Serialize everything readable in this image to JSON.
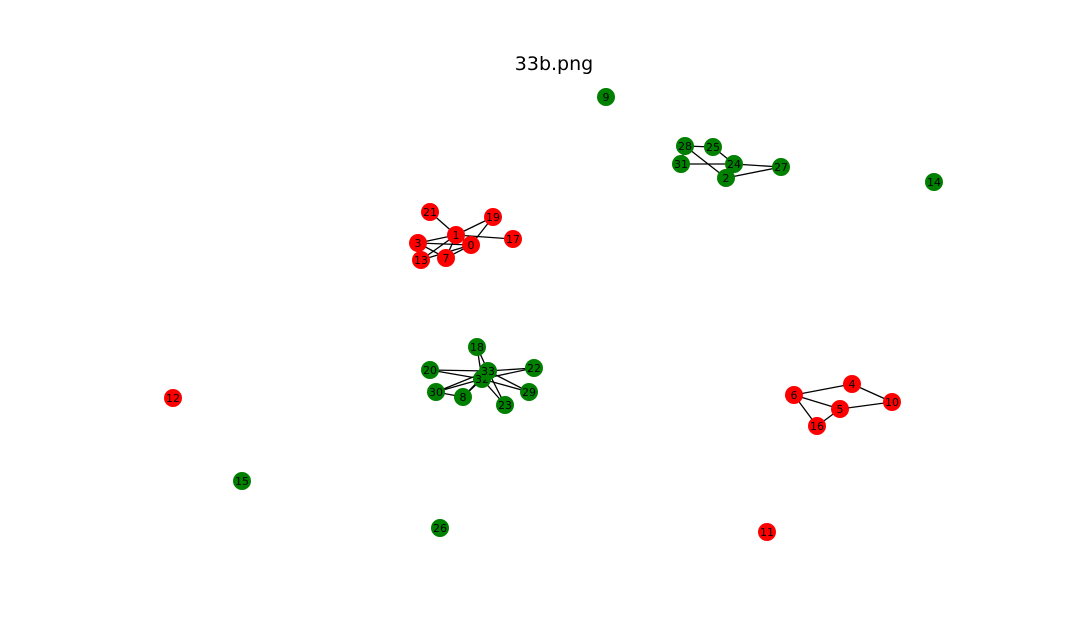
{
  "title": "33b.png",
  "colors": {
    "red_group": "#ff0000",
    "green_group": "#008000",
    "edge": "#000000"
  },
  "graph": {
    "nodes": [
      {
        "id": "0",
        "group": "red"
      },
      {
        "id": "1",
        "group": "red"
      },
      {
        "id": "3",
        "group": "red"
      },
      {
        "id": "7",
        "group": "red"
      },
      {
        "id": "13",
        "group": "red"
      },
      {
        "id": "17",
        "group": "red"
      },
      {
        "id": "19",
        "group": "red"
      },
      {
        "id": "21",
        "group": "red"
      },
      {
        "id": "4",
        "group": "red"
      },
      {
        "id": "5",
        "group": "red"
      },
      {
        "id": "6",
        "group": "red"
      },
      {
        "id": "10",
        "group": "red"
      },
      {
        "id": "16",
        "group": "red"
      },
      {
        "id": "11",
        "group": "red"
      },
      {
        "id": "12",
        "group": "red"
      },
      {
        "id": "2",
        "group": "green"
      },
      {
        "id": "24",
        "group": "green"
      },
      {
        "id": "25",
        "group": "green"
      },
      {
        "id": "27",
        "group": "green"
      },
      {
        "id": "28",
        "group": "green"
      },
      {
        "id": "31",
        "group": "green"
      },
      {
        "id": "8",
        "group": "green"
      },
      {
        "id": "18",
        "group": "green"
      },
      {
        "id": "20",
        "group": "green"
      },
      {
        "id": "22",
        "group": "green"
      },
      {
        "id": "23",
        "group": "green"
      },
      {
        "id": "29",
        "group": "green"
      },
      {
        "id": "30",
        "group": "green"
      },
      {
        "id": "32",
        "group": "green"
      },
      {
        "id": "33",
        "group": "green"
      },
      {
        "id": "9",
        "group": "green"
      },
      {
        "id": "14",
        "group": "green"
      },
      {
        "id": "15",
        "group": "green"
      },
      {
        "id": "26",
        "group": "green"
      }
    ],
    "edges": [
      [
        "1",
        "21"
      ],
      [
        "1",
        "19"
      ],
      [
        "1",
        "17"
      ],
      [
        "1",
        "3"
      ],
      [
        "1",
        "13"
      ],
      [
        "1",
        "7"
      ],
      [
        "1",
        "0"
      ],
      [
        "0",
        "3"
      ],
      [
        "0",
        "13"
      ],
      [
        "0",
        "19"
      ],
      [
        "0",
        "7"
      ],
      [
        "3",
        "7"
      ],
      [
        "3",
        "13"
      ],
      [
        "28",
        "31"
      ],
      [
        "28",
        "25"
      ],
      [
        "28",
        "2"
      ],
      [
        "25",
        "24"
      ],
      [
        "31",
        "24"
      ],
      [
        "24",
        "27"
      ],
      [
        "24",
        "2"
      ],
      [
        "2",
        "27"
      ],
      [
        "6",
        "4"
      ],
      [
        "6",
        "5"
      ],
      [
        "6",
        "16"
      ],
      [
        "4",
        "10"
      ],
      [
        "5",
        "10"
      ],
      [
        "5",
        "16"
      ],
      [
        "33",
        "18"
      ],
      [
        "33",
        "20"
      ],
      [
        "33",
        "22"
      ],
      [
        "33",
        "29"
      ],
      [
        "33",
        "23"
      ],
      [
        "33",
        "30"
      ],
      [
        "33",
        "8"
      ],
      [
        "33",
        "32"
      ],
      [
        "32",
        "18"
      ],
      [
        "32",
        "20"
      ],
      [
        "32",
        "22"
      ],
      [
        "32",
        "29"
      ],
      [
        "32",
        "23"
      ],
      [
        "32",
        "30"
      ],
      [
        "32",
        "8"
      ],
      [
        "30",
        "8"
      ]
    ]
  }
}
